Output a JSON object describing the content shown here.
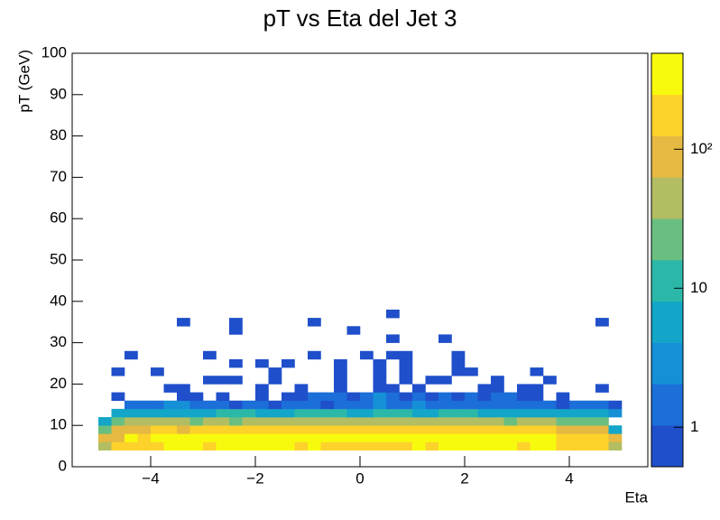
{
  "chart_data": {
    "type": "heatmap",
    "title": "pT vs Eta del Jet 3",
    "x_label": "Eta",
    "y_label": "pT (GeV)",
    "xlim": [
      -5.5,
      5.5
    ],
    "xticks": [
      {
        "value": -4,
        "label": "−4"
      },
      {
        "value": -2,
        "label": "−2"
      },
      0,
      2,
      4
    ],
    "ylim": [
      0,
      100
    ],
    "yticks": [
      0,
      10,
      20,
      30,
      40,
      50,
      60,
      70,
      80,
      90,
      100
    ],
    "zlim": [
      0.52,
      490
    ],
    "zlog": true,
    "zticks": [
      1,
      10,
      {
        "value": 100,
        "label": "10²"
      }
    ],
    "palette": [
      "#1f4fca",
      "#1c6ed9",
      "#1590d6",
      "#13a6c8",
      "#2cb8a8",
      "#6abf80",
      "#b3bd62",
      "#e6b942",
      "#fdd22a",
      "#f8fa0d"
    ],
    "x_edges": [
      -5,
      -4.75,
      -4.5,
      -4.25,
      -4,
      -3.75,
      -3.5,
      -3.25,
      -3,
      -2.75,
      -2.5,
      -2.25,
      -2,
      -1.75,
      -1.5,
      -1.25,
      -1,
      -0.75,
      -0.5,
      -0.25,
      0,
      0.25,
      0.5,
      0.75,
      1,
      1.25,
      1.5,
      1.75,
      2,
      2.25,
      2.5,
      2.75,
      3,
      3.25,
      3.5,
      3.75,
      4,
      4.25,
      4.5,
      4.75,
      5
    ],
    "y_edges": [
      4,
      6,
      8,
      10,
      12,
      14,
      16,
      18,
      20,
      22,
      24,
      26,
      28,
      30,
      32,
      34,
      36,
      38
    ],
    "z": [
      [
        40,
        150,
        200,
        200,
        200,
        300,
        300,
        300,
        200,
        300,
        300,
        300,
        300,
        300,
        300,
        200,
        300,
        200,
        200,
        200,
        200,
        200,
        200,
        200,
        300,
        200,
        300,
        300,
        300,
        300,
        300,
        300,
        200,
        300,
        300,
        200,
        200,
        200,
        200,
        40
      ],
      [
        80,
        120,
        300,
        200,
        300,
        300,
        300,
        300,
        300,
        300,
        300,
        300,
        300,
        300,
        300,
        300,
        300,
        300,
        300,
        300,
        300,
        300,
        300,
        300,
        300,
        300,
        300,
        300,
        300,
        300,
        300,
        300,
        300,
        300,
        300,
        200,
        200,
        200,
        200,
        80
      ],
      [
        30,
        100,
        120,
        120,
        150,
        150,
        120,
        150,
        150,
        150,
        150,
        150,
        150,
        150,
        150,
        150,
        150,
        150,
        150,
        150,
        150,
        150,
        150,
        150,
        150,
        150,
        150,
        150,
        150,
        150,
        150,
        150,
        150,
        150,
        150,
        120,
        120,
        120,
        100,
        8
      ],
      [
        5,
        20,
        40,
        40,
        40,
        40,
        40,
        30,
        40,
        40,
        30,
        40,
        40,
        40,
        40,
        40,
        40,
        40,
        40,
        40,
        40,
        40,
        40,
        40,
        40,
        40,
        40,
        40,
        40,
        40,
        40,
        30,
        40,
        40,
        40,
        30,
        20,
        20,
        20,
        null
      ],
      [
        null,
        6,
        8,
        8,
        8,
        6,
        8,
        8,
        8,
        10,
        10,
        10,
        8,
        8,
        8,
        10,
        10,
        10,
        10,
        8,
        8,
        10,
        10,
        10,
        8,
        8,
        10,
        10,
        10,
        8,
        8,
        8,
        8,
        8,
        6,
        6,
        6,
        6,
        6,
        4
      ],
      [
        null,
        null,
        2,
        2,
        2,
        3,
        3,
        2,
        2,
        2,
        1,
        2,
        2,
        1,
        2,
        2,
        2,
        1,
        2,
        2,
        2,
        3,
        2,
        2,
        3,
        2,
        2,
        2,
        2,
        2,
        2,
        2,
        2,
        2,
        2,
        1,
        2,
        2,
        2,
        1
      ],
      [
        null,
        1,
        null,
        null,
        null,
        null,
        1,
        1,
        null,
        1,
        null,
        null,
        1,
        null,
        1,
        1,
        2,
        2,
        2,
        1,
        2,
        3,
        2,
        1,
        2,
        1,
        2,
        1,
        2,
        1,
        2,
        2,
        1,
        1,
        null,
        1,
        null,
        null,
        null,
        null
      ],
      [
        null,
        null,
        null,
        null,
        null,
        1,
        1,
        null,
        null,
        null,
        null,
        null,
        1,
        null,
        null,
        1,
        null,
        null,
        1,
        null,
        null,
        1,
        1,
        null,
        1,
        null,
        null,
        null,
        null,
        1,
        1,
        null,
        1,
        1,
        null,
        null,
        null,
        null,
        1,
        null
      ],
      [
        null,
        null,
        null,
        null,
        null,
        null,
        null,
        null,
        1,
        1,
        1,
        null,
        null,
        1,
        null,
        null,
        null,
        null,
        1,
        null,
        null,
        1,
        null,
        1,
        null,
        1,
        1,
        null,
        null,
        null,
        1,
        null,
        null,
        null,
        1,
        null,
        null,
        null,
        null,
        null
      ],
      [
        null,
        1,
        null,
        null,
        1,
        null,
        null,
        null,
        null,
        null,
        null,
        null,
        null,
        1,
        null,
        null,
        null,
        null,
        1,
        null,
        null,
        1,
        null,
        1,
        null,
        null,
        null,
        1,
        1,
        null,
        null,
        null,
        null,
        1,
        null,
        null,
        null,
        null,
        null,
        null
      ],
      [
        null,
        null,
        null,
        null,
        null,
        null,
        null,
        null,
        null,
        null,
        1,
        null,
        1,
        null,
        1,
        null,
        null,
        null,
        1,
        null,
        null,
        1,
        null,
        1,
        null,
        null,
        null,
        1,
        null,
        null,
        null,
        null,
        null,
        null,
        null,
        null,
        null,
        null,
        null,
        null
      ],
      [
        null,
        null,
        1,
        null,
        null,
        null,
        null,
        null,
        1,
        null,
        null,
        null,
        null,
        null,
        null,
        null,
        1,
        null,
        null,
        null,
        1,
        null,
        1,
        1,
        null,
        null,
        null,
        1,
        null,
        null,
        null,
        null,
        null,
        null,
        null,
        null,
        null,
        null,
        null,
        null
      ],
      [
        null,
        null,
        null,
        null,
        null,
        null,
        null,
        null,
        null,
        null,
        null,
        null,
        null,
        null,
        null,
        null,
        null,
        null,
        null,
        null,
        null,
        null,
        null,
        null,
        null,
        null,
        null,
        null,
        null,
        null,
        null,
        null,
        null,
        null,
        null,
        null,
        null,
        null,
        null,
        null
      ],
      [
        null,
        null,
        null,
        null,
        null,
        null,
        null,
        null,
        null,
        null,
        null,
        null,
        null,
        null,
        null,
        null,
        null,
        null,
        null,
        null,
        null,
        null,
        1,
        null,
        null,
        null,
        1,
        null,
        null,
        null,
        null,
        null,
        null,
        null,
        null,
        null,
        null,
        null,
        null,
        null
      ],
      [
        null,
        null,
        null,
        null,
        null,
        null,
        null,
        null,
        null,
        null,
        1,
        null,
        null,
        null,
        null,
        null,
        null,
        null,
        null,
        1,
        null,
        null,
        null,
        null,
        null,
        null,
        null,
        null,
        null,
        null,
        null,
        null,
        null,
        null,
        null,
        null,
        null,
        null,
        null,
        null
      ],
      [
        null,
        null,
        null,
        null,
        null,
        null,
        1,
        null,
        null,
        null,
        1,
        null,
        null,
        null,
        null,
        null,
        1,
        null,
        null,
        null,
        null,
        null,
        null,
        null,
        null,
        null,
        null,
        null,
        null,
        null,
        null,
        null,
        null,
        null,
        null,
        null,
        null,
        null,
        1,
        null
      ],
      [
        null,
        null,
        null,
        null,
        null,
        null,
        null,
        null,
        null,
        null,
        null,
        null,
        null,
        null,
        null,
        null,
        null,
        null,
        null,
        null,
        null,
        null,
        1,
        null,
        null,
        null,
        null,
        null,
        null,
        null,
        null,
        null,
        null,
        null,
        null,
        null,
        null,
        null,
        null,
        null
      ]
    ]
  }
}
